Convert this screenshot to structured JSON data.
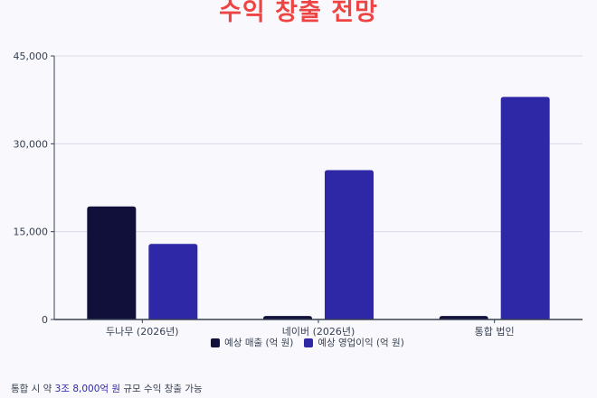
{
  "colors": {
    "title": "#ef4444",
    "series_revenue": "#11103b",
    "series_op_profit": "#2e27a6",
    "grid": "#dcdbe8",
    "axis": "#374151",
    "highlight": "#2e27a6"
  },
  "chart_data": {
    "type": "bar",
    "title": "수익 창출 전망",
    "categories": [
      "두나무 (2026년)",
      "네이버 (2026년)",
      "통합 법인"
    ],
    "series": [
      {
        "name": "예상 매출 (억 원)",
        "values": [
          19300,
          600,
          600
        ]
      },
      {
        "name": "예상 영업이익 (억 원)",
        "values": [
          12900,
          25500,
          38000
        ]
      }
    ],
    "ylim": [
      0,
      45000
    ],
    "yticks": [
      "0",
      "15,000",
      "30,000",
      "45,000"
    ],
    "ytick_values": [
      0,
      15000,
      30000,
      45000
    ],
    "grid": true,
    "legend_position": "bottom"
  },
  "footnote": {
    "prefix": "통합 시 약 ",
    "highlight": "3조 8,000억 원",
    "suffix": " 규모 수익 창출 가능"
  }
}
